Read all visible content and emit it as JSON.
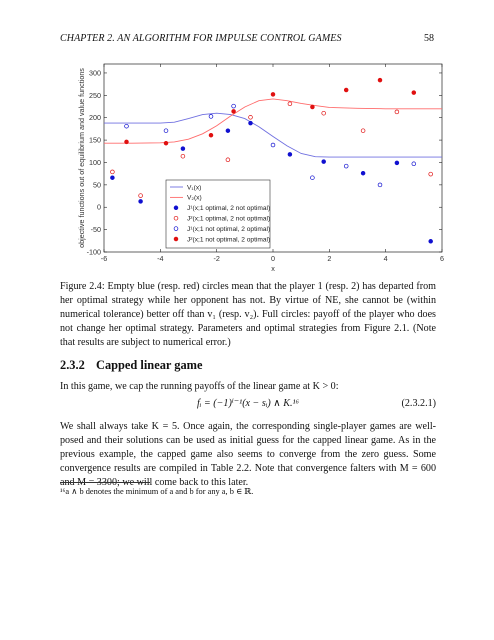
{
  "header": {
    "title": "CHAPTER 2.  AN ALGORITHM FOR IMPULSE CONTROL GAMES",
    "page_number": "58"
  },
  "figure": {
    "caption": "Figure 2.4: Empty blue (resp. red) circles mean that the player 1 (resp. 2) has departed from her optimal strategy while her opponent has not. By virtue of NE, she cannot be (within numerical tolerance) better off than v₁ (resp. v₂). Full circles: payoff of the player who does not change her optimal strategy. Parameters and optimal strategies from Figure 2.1. (Note that results are subject to numerical error.)"
  },
  "section": {
    "number": "2.3.2",
    "title": "Capped linear game"
  },
  "paragraph1": "In this game, we cap the running payoffs of the linear game at K > 0:",
  "equation": {
    "expr": "fᵢ = (−1)ⁱ⁻¹(x − sᵢ) ∧ K.¹⁶",
    "tag": "(2.3.2.1)"
  },
  "paragraph2": "We shall always take K = 5. Once again, the corresponding single-player games are well-posed and their solutions can be used as initial guess for the capped linear game. As in the previous example, the capped game also seems to converge from the zero guess. Some convergence results are compiled in Table 2.2. Note that convergence falters with M = 600 and M = 3300; we will come back to this later.",
  "footnote": "¹⁶a ∧ b denotes the minimum of a and b for any a, b ∈ ℝ.",
  "chart_data": {
    "type": "scatter",
    "xlabel": "x",
    "ylabel": "objective functions out of equilibrium and value functions",
    "xlim": [
      -6,
      6
    ],
    "ylim": [
      -100,
      320
    ],
    "x_ticks": [
      -6,
      -4,
      -2,
      0,
      2,
      4,
      6
    ],
    "x_tick_labels": [
      "-6",
      "-4",
      "-2",
      "0",
      "2",
      "4",
      "6"
    ],
    "y_ticks": [
      -100,
      -50,
      0,
      50,
      100,
      150,
      200,
      250,
      300
    ],
    "y_tick_labels": [
      "-100",
      "-50",
      "0",
      "50",
      "100",
      "150",
      "200",
      "250",
      "300"
    ],
    "grid": false,
    "legend_position": "center-left",
    "colors": {
      "v1": "#7070e0",
      "v2": "#ff6b6b",
      "blue": "#1010d0",
      "red": "#e01010"
    },
    "curves": [
      {
        "name": "V₁(x)",
        "color": "#7070e0",
        "x": [
          -6,
          -5,
          -4,
          -3.5,
          -3,
          -2.5,
          -2,
          -1.5,
          -1,
          -0.5,
          0,
          0.5,
          1,
          1.5,
          2,
          3,
          4,
          5,
          6
        ],
        "y": [
          188,
          188,
          188,
          190,
          198,
          207,
          210,
          207,
          198,
          180,
          158,
          137,
          120,
          113,
          112,
          112,
          112,
          112,
          112
        ]
      },
      {
        "name": "V₂(x)",
        "color": "#ff6b6b",
        "x": [
          -6,
          -5,
          -4,
          -3.5,
          -3,
          -2.5,
          -2,
          -1.5,
          -1,
          -0.5,
          0,
          0.5,
          1,
          1.5,
          2,
          3,
          4,
          5,
          6
        ],
        "y": [
          143,
          143,
          144,
          146,
          152,
          164,
          182,
          204,
          224,
          238,
          242,
          238,
          232,
          227,
          223,
          221,
          220,
          220,
          220
        ]
      }
    ],
    "point_series": [
      {
        "name": "J¹(x;1 optimal, 2 not optimal)",
        "color": "#1010d0",
        "filled": true,
        "points": [
          [
            -5.7,
            66
          ],
          [
            -4.7,
            13
          ],
          [
            -3.2,
            131
          ],
          [
            -1.6,
            171
          ],
          [
            -0.8,
            188
          ],
          [
            0.6,
            118
          ],
          [
            1.8,
            102
          ],
          [
            3.2,
            76
          ],
          [
            4.4,
            99
          ],
          [
            5.6,
            -76
          ]
        ]
      },
      {
        "name": "J²(x;1 optimal, 2 not optimal)",
        "color": "#e01010",
        "filled": false,
        "points": [
          [
            -5.7,
            79
          ],
          [
            -4.7,
            26
          ],
          [
            -3.2,
            114
          ],
          [
            -1.6,
            106
          ],
          [
            -0.8,
            201
          ],
          [
            0.6,
            231
          ],
          [
            1.8,
            210
          ],
          [
            3.2,
            171
          ],
          [
            4.4,
            213
          ],
          [
            5.6,
            74
          ]
        ]
      },
      {
        "name": "J¹(x;1 not optimal, 2 optimal)",
        "color": "#1010d0",
        "filled": false,
        "points": [
          [
            -5.2,
            181
          ],
          [
            -3.8,
            171
          ],
          [
            -2.2,
            203
          ],
          [
            -1.4,
            226
          ],
          [
            0.0,
            139
          ],
          [
            1.4,
            66
          ],
          [
            2.6,
            92
          ],
          [
            3.8,
            50
          ],
          [
            5.0,
            97
          ]
        ]
      },
      {
        "name": "J²(x;1 not optimal, 2 optimal)",
        "color": "#e01010",
        "filled": true,
        "points": [
          [
            -5.2,
            146
          ],
          [
            -3.8,
            143
          ],
          [
            -2.2,
            161
          ],
          [
            -1.4,
            214
          ],
          [
            0.0,
            252
          ],
          [
            1.4,
            224
          ],
          [
            2.6,
            262
          ],
          [
            3.8,
            284
          ],
          [
            5.0,
            256
          ]
        ]
      }
    ]
  }
}
